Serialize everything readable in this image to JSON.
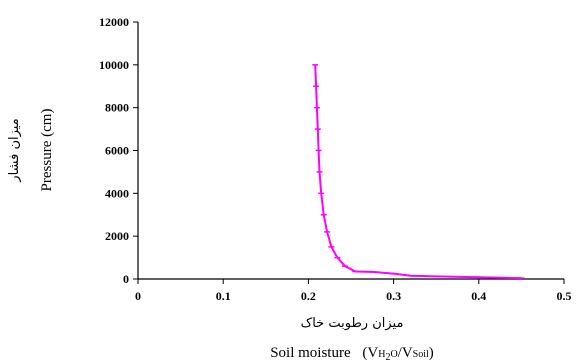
{
  "chart_data": {
    "type": "line",
    "xlabel_fa": "میزان رطوبت خاک",
    "xlabel": {
      "main": "Soil moisture",
      "open": "(V",
      "h": "H",
      "two": "2",
      "o": "O",
      "slash": "/V",
      "soil": "Soil",
      "close": ")"
    },
    "ylabel": "Pressure (cm)",
    "ylabel_fa": "میزان فشار",
    "xlim": [
      0,
      0.5
    ],
    "ylim": [
      0,
      12000
    ],
    "x_ticks": [
      0,
      0.1,
      0.2,
      0.3,
      0.4,
      0.5
    ],
    "x_tick_labels": [
      "0",
      "0.1",
      "0.2",
      "0.3",
      "0.4",
      "0.5"
    ],
    "y_ticks": [
      0,
      2000,
      4000,
      6000,
      8000,
      10000,
      12000
    ],
    "y_tick_labels": [
      "0",
      "2000",
      "4000",
      "6000",
      "8000",
      "10000",
      "12000"
    ],
    "series": [
      {
        "color": "#ff00ff",
        "x": [
          0.208,
          0.209,
          0.21,
          0.211,
          0.212,
          0.213,
          0.215,
          0.218,
          0.222,
          0.227,
          0.234,
          0.243,
          0.255,
          0.275,
          0.3,
          0.32,
          0.35,
          0.4,
          0.45
        ],
        "y": [
          10000,
          9000,
          8000,
          7000,
          6000,
          5000,
          4000,
          3000,
          2200,
          1500,
          1000,
          600,
          350,
          330,
          250,
          150,
          120,
          80,
          40
        ]
      }
    ],
    "grid": false
  }
}
